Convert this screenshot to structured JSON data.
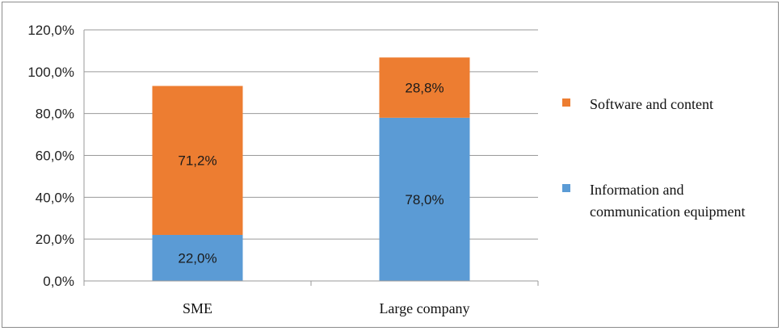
{
  "chart_data": {
    "type": "bar",
    "stacked": true,
    "categories": [
      "SME",
      "Large company"
    ],
    "series": [
      {
        "name": "Information and communication equipment",
        "values": [
          22.0,
          78.0
        ],
        "labels": [
          "22,0%",
          "78,0%"
        ],
        "color": "#5b9bd5"
      },
      {
        "name": "Software and content",
        "values": [
          71.2,
          28.8
        ],
        "labels": [
          "71,2%",
          "28,8%"
        ],
        "color": "#ed7d31"
      }
    ],
    "ylim": [
      0,
      120
    ],
    "yticks": [
      {
        "value": 0,
        "label": "0,0%"
      },
      {
        "value": 20,
        "label": "20,0%"
      },
      {
        "value": 40,
        "label": "40,0%"
      },
      {
        "value": 60,
        "label": "60,0%"
      },
      {
        "value": 80,
        "label": "80,0%"
      },
      {
        "value": 100,
        "label": "100,0%"
      },
      {
        "value": 120,
        "label": "120,0%"
      }
    ],
    "legend": {
      "position": "right",
      "entries": [
        {
          "lines": [
            "Software and content"
          ],
          "color": "#ed7d31"
        },
        {
          "lines": [
            "Information and",
            "communication equipment"
          ],
          "color": "#5b9bd5"
        }
      ]
    },
    "grid": true,
    "title": "",
    "xlabel": "",
    "ylabel": ""
  }
}
